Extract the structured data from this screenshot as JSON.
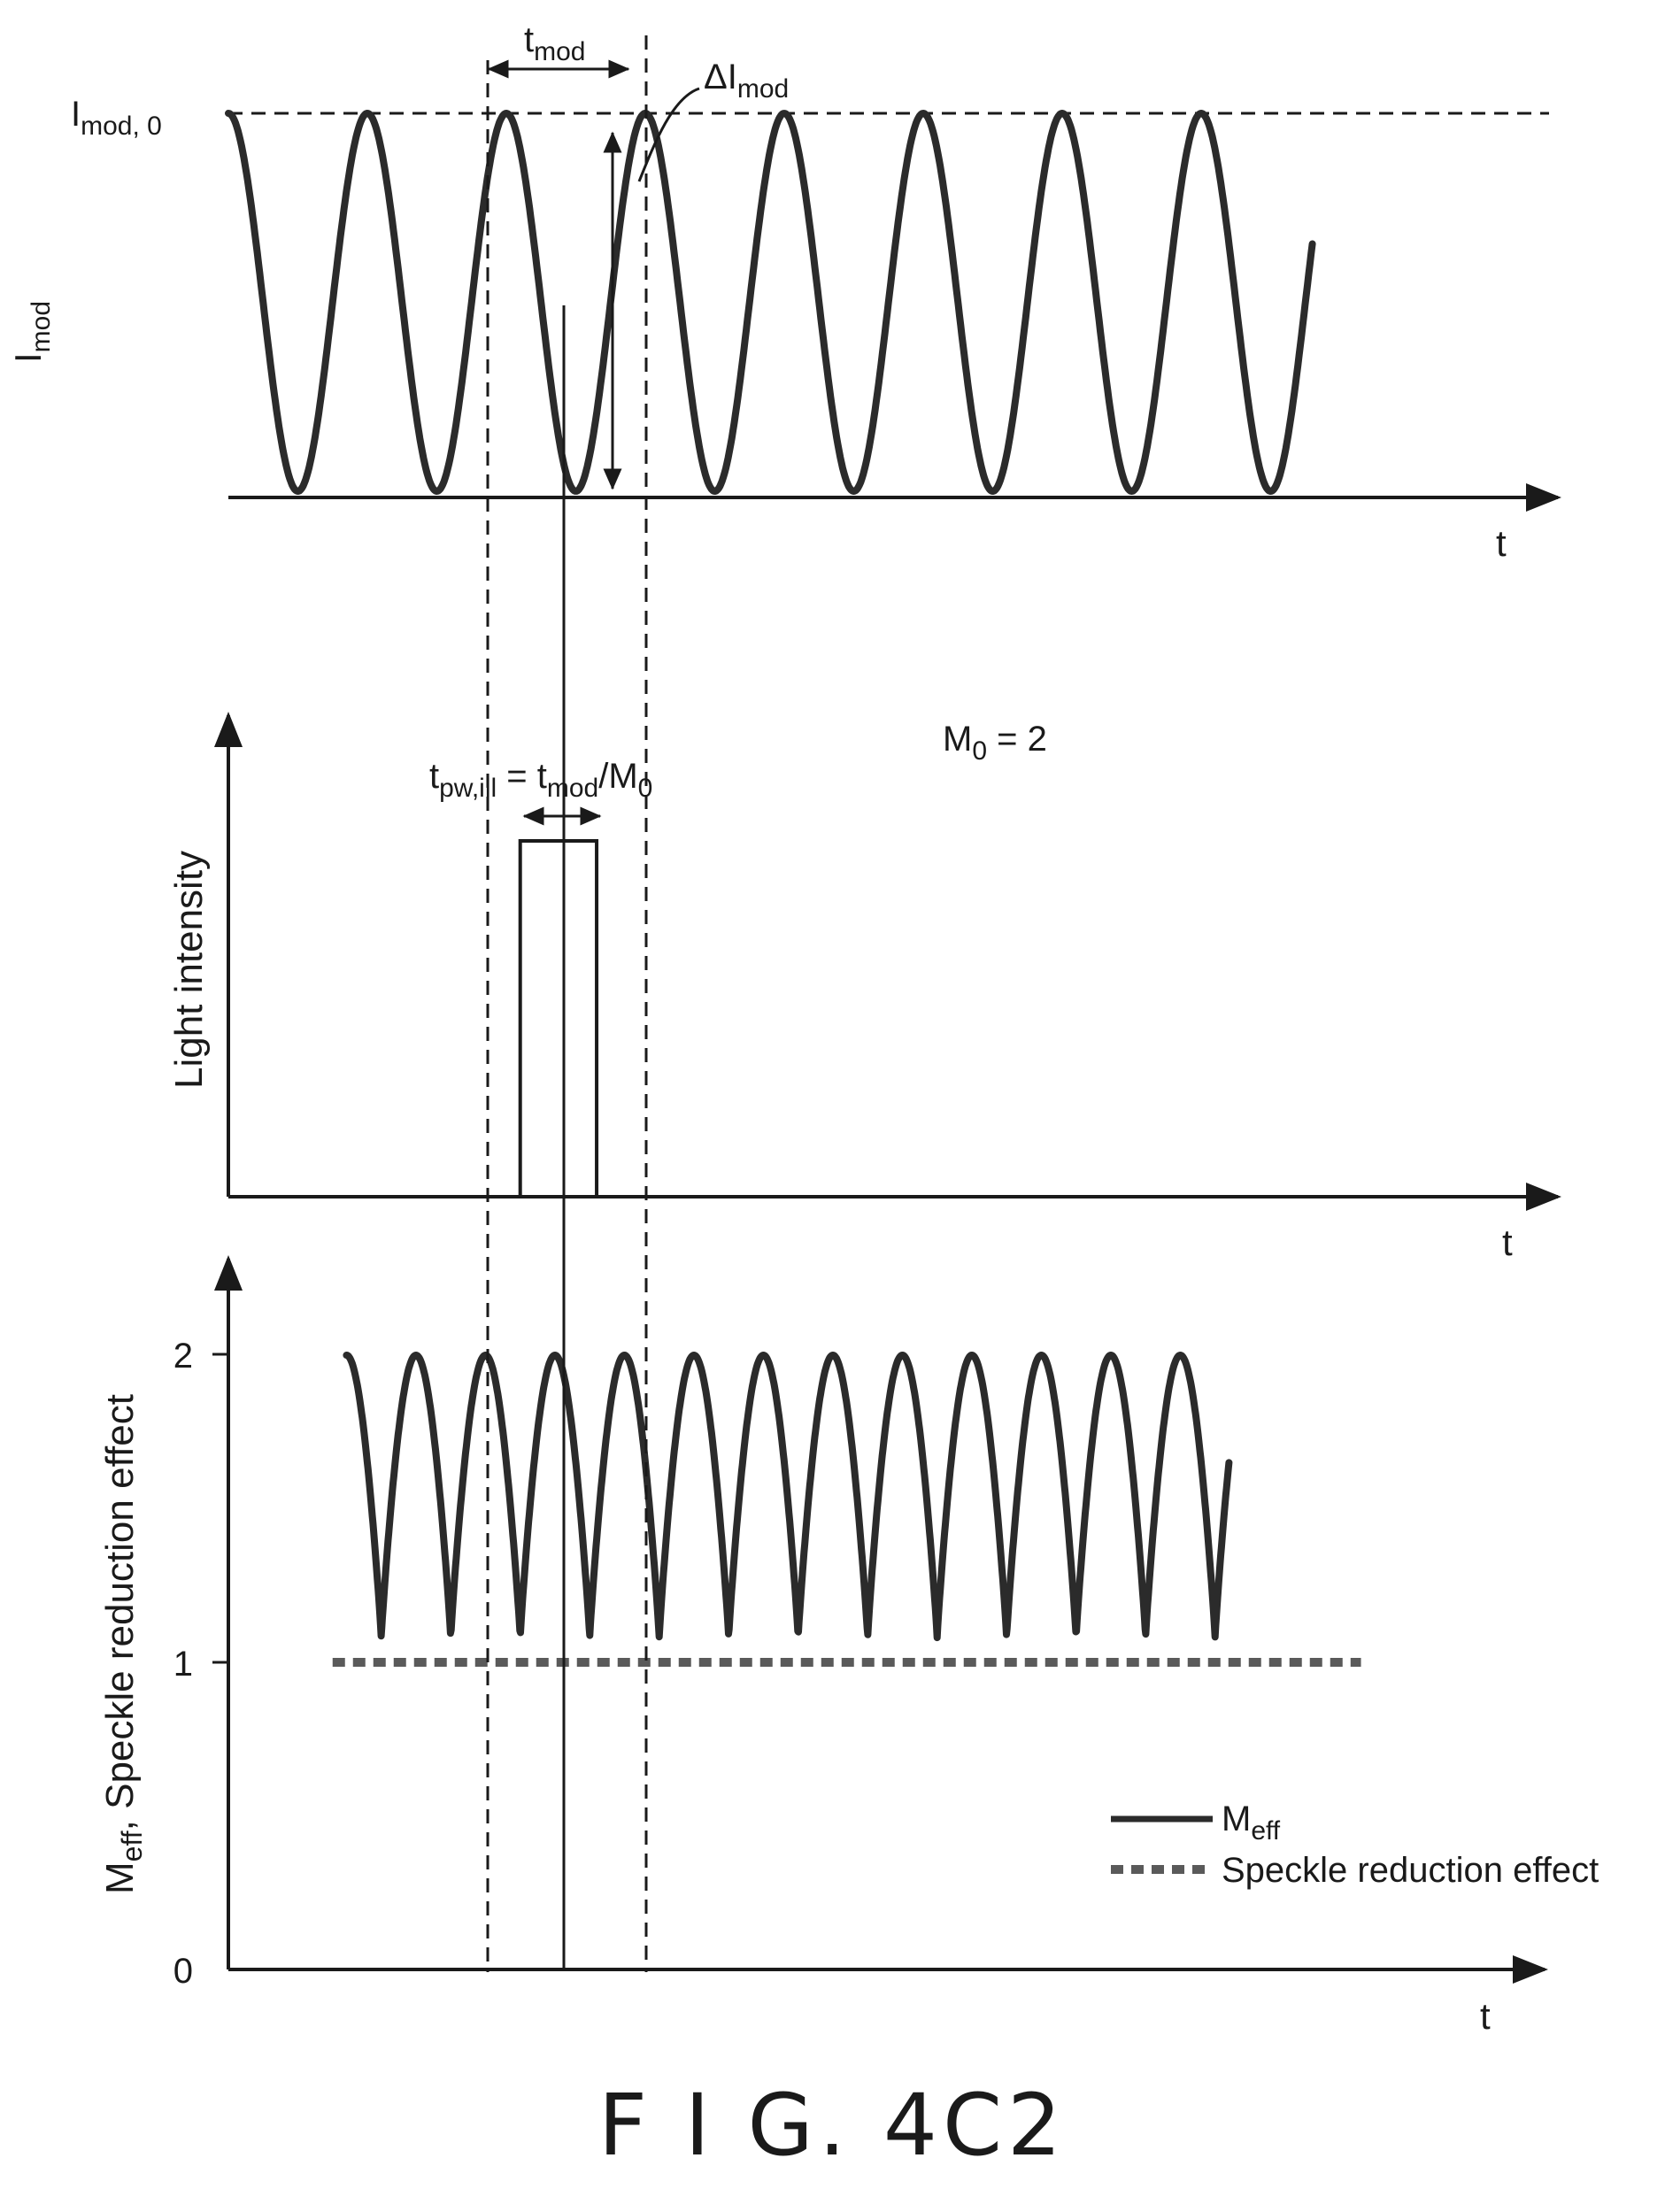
{
  "figure": {
    "caption": "F I G. 4C2"
  },
  "chart_data": [
    {
      "type": "line",
      "ylabel": "I",
      "ylabel_sub": "mod",
      "xlabel": "t",
      "ytick_label": "I",
      "ytick_sub": "mod, 0",
      "annotations": {
        "tmod": {
          "main": "t",
          "sub": "mod"
        },
        "delta": {
          "main": "ΔI",
          "sub": "mod"
        }
      },
      "x_range": [
        0,
        8.1
      ],
      "y_range": [
        0,
        1
      ],
      "series": [
        {
          "kind": "cosine_squared",
          "period": 1,
          "x_start": 0,
          "x_end": 7.8,
          "values_range": [
            0,
            1
          ]
        }
      ]
    },
    {
      "type": "line",
      "ylabel": "Light intensity",
      "xlabel": "t",
      "annotations": {
        "m0": {
          "main": "M",
          "sub": "0",
          "rest": " = 2"
        },
        "pulse_width": {
          "p1": "t",
          "s1": "pw,ill",
          "p2": " = t",
          "s2": "mod",
          "p3": "/M",
          "s3": "0"
        }
      },
      "pulse": {
        "x_start": 2.1,
        "x_end": 2.65,
        "value": 1
      },
      "x_range": [
        0,
        8.1
      ],
      "y_range": [
        0,
        1
      ]
    },
    {
      "type": "line",
      "ylabel_main": "M",
      "ylabel_sub": "eff",
      "ylabel_rest": ", Speckle reduction effect",
      "xlabel": "t",
      "yticks": [
        "0",
        "1",
        "2"
      ],
      "ylim": [
        0,
        2
      ],
      "legend_position": "bottom-right",
      "series": [
        {
          "name_main": "M",
          "name_sub": "eff",
          "style": "solid",
          "period": 0.5,
          "x_start": 0.85,
          "x_end": 7.2,
          "peak": 2,
          "min": 1.08
        },
        {
          "name": "Speckle reduction effect",
          "style": "dotted",
          "value": 1,
          "x_start": 0.75,
          "x_end": 8.15
        }
      ]
    }
  ]
}
